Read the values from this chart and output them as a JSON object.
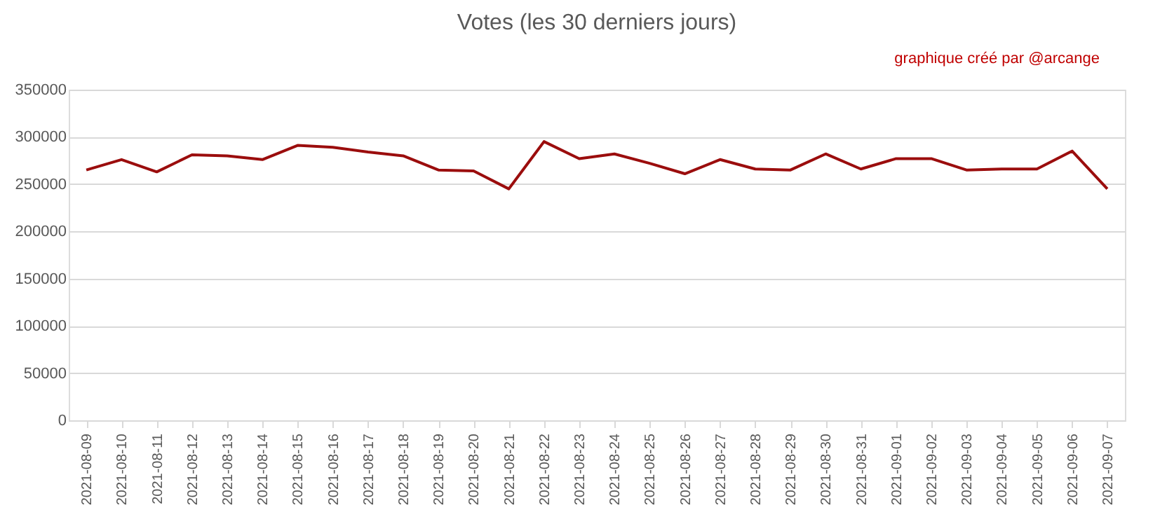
{
  "chart_data": {
    "type": "line",
    "title": "Votes (les 30 derniers jours)",
    "annotations": [
      "graphique créé par @arcange"
    ],
    "categories": [
      "2021-08-09",
      "2021-08-10",
      "2021-08-11",
      "2021-08-12",
      "2021-08-13",
      "2021-08-14",
      "2021-08-15",
      "2021-08-16",
      "2021-08-17",
      "2021-08-18",
      "2021-08-19",
      "2021-08-20",
      "2021-08-21",
      "2021-08-22",
      "2021-08-23",
      "2021-08-24",
      "2021-08-25",
      "2021-08-26",
      "2021-08-27",
      "2021-08-28",
      "2021-08-29",
      "2021-08-30",
      "2021-08-31",
      "2021-09-01",
      "2021-09-02",
      "2021-09-03",
      "2021-09-04",
      "2021-09-05",
      "2021-09-06",
      "2021-09-07"
    ],
    "series": [
      {
        "color": "#9b0d0d",
        "values": [
          265000,
          276000,
          263000,
          281000,
          280000,
          276000,
          291000,
          289000,
          284000,
          280000,
          265000,
          264000,
          245000,
          295000,
          277000,
          282000,
          272000,
          261000,
          276000,
          266000,
          265000,
          282000,
          266000,
          277000,
          277000,
          265000,
          266000,
          266000,
          285000,
          245000
        ]
      }
    ],
    "ylim": [
      0,
      350000
    ],
    "yticks": [
      0,
      50000,
      100000,
      150000,
      200000,
      250000,
      300000,
      350000
    ],
    "grid": "y",
    "marker": "none",
    "line_style": "solid"
  }
}
